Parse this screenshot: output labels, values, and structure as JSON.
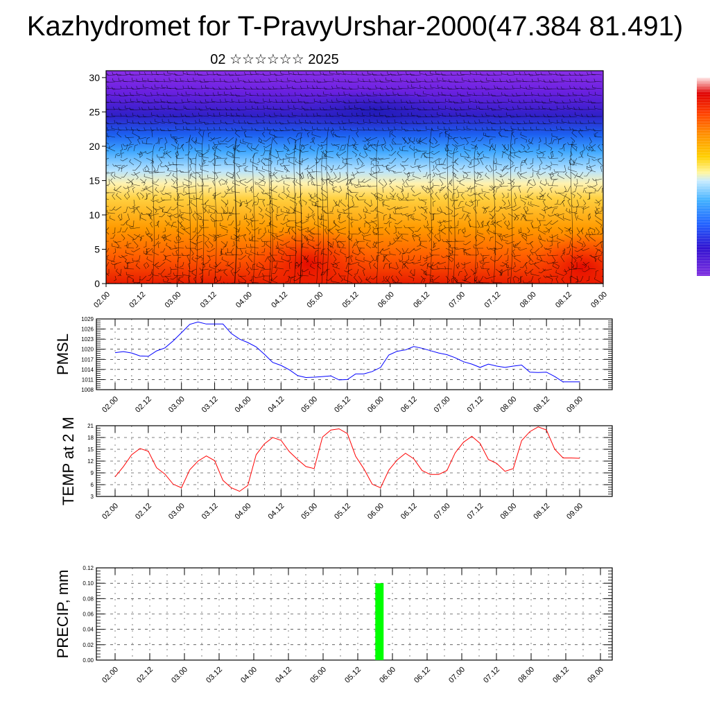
{
  "title": "Kazhydromet for T-PravyUrshar-2000(47.384 81.491)",
  "subtitle": "02 ☆☆☆☆☆☆ 2025",
  "chart_data": [
    {
      "type": "heatmap",
      "name": "cross-section",
      "x_ticks": [
        "02.00",
        "02.12",
        "03.00",
        "03.12",
        "04.00",
        "04.12",
        "05.00",
        "05.12",
        "06.00",
        "06.12",
        "07.00",
        "07.12",
        "08.00",
        "08.12",
        "09.00"
      ],
      "y_ticks": [
        0,
        5,
        10,
        15,
        20,
        25,
        30
      ],
      "ylim": [
        0,
        31
      ],
      "colorbar_colors": [
        "#e00000",
        "#ff3a00",
        "#ff8000",
        "#ffb800",
        "#fff2a0",
        "#b8e8ff",
        "#40b0ff",
        "#1060ff",
        "#4010d0",
        "#7020e0"
      ]
    },
    {
      "type": "line",
      "name": "pmsl",
      "ylabel": "PMSL",
      "color": "#0000ff",
      "x_ticks": [
        "02.00",
        "02.12",
        "03.00",
        "03.12",
        "04.00",
        "04.12",
        "05.00",
        "05.12",
        "06.00",
        "06.12",
        "07.00",
        "07.12",
        "08.00",
        "08.12",
        "09.00"
      ],
      "y_ticks": [
        1008,
        1011,
        1014,
        1017,
        1020,
        1023,
        1026,
        1029
      ],
      "ylim": [
        1008,
        1029
      ],
      "x": [
        0,
        1,
        2,
        3,
        4,
        5,
        6,
        7,
        8,
        9,
        10,
        11,
        12,
        13,
        14,
        15,
        16,
        17,
        18,
        19,
        20,
        21,
        22,
        23,
        24,
        25,
        26,
        27,
        28,
        29,
        30,
        31,
        32,
        33,
        34,
        35,
        36,
        37,
        38,
        39,
        40,
        41,
        42,
        43,
        44,
        45,
        46,
        47,
        48,
        49,
        50,
        51,
        52,
        53,
        54,
        55,
        56
      ],
      "values": [
        1019.0,
        1019.3,
        1018.9,
        1018.0,
        1017.9,
        1019.5,
        1020.4,
        1022.5,
        1024.9,
        1027.4,
        1028.1,
        1027.5,
        1027.5,
        1027.5,
        1024.7,
        1023.0,
        1022.0,
        1020.7,
        1018.5,
        1016.1,
        1015.2,
        1013.9,
        1012.2,
        1011.6,
        1011.7,
        1011.9,
        1012.1,
        1010.9,
        1011.0,
        1012.7,
        1012.7,
        1013.4,
        1014.6,
        1018.3,
        1019.4,
        1019.8,
        1020.8,
        1020.3,
        1019.6,
        1018.9,
        1018.4,
        1017.5,
        1016.3,
        1015.6,
        1014.6,
        1015.6,
        1015.0,
        1014.6,
        1015.0,
        1015.3,
        1013.2,
        1013.1,
        1013.2,
        1011.9,
        1010.3,
        1010.3,
        1010.3
      ]
    },
    {
      "type": "line",
      "name": "temp",
      "ylabel": "TEMP at 2 M",
      "color": "#ff0000",
      "x_ticks": [
        "02.00",
        "02.12",
        "03.00",
        "03.12",
        "04.00",
        "04.12",
        "05.00",
        "05.12",
        "06.00",
        "06.12",
        "07.00",
        "07.12",
        "08.00",
        "08.12",
        "09.00"
      ],
      "y_ticks": [
        3,
        6,
        9,
        12,
        15,
        18,
        21
      ],
      "ylim": [
        3,
        21
      ],
      "x": [
        0,
        1,
        2,
        3,
        4,
        5,
        6,
        7,
        8,
        9,
        10,
        11,
        12,
        13,
        14,
        15,
        16,
        17,
        18,
        19,
        20,
        21,
        22,
        23,
        24,
        25,
        26,
        27,
        28,
        29,
        30,
        31,
        32,
        33,
        34,
        35,
        36,
        37,
        38,
        39,
        40,
        41,
        42,
        43,
        44,
        45,
        46,
        47,
        48,
        49,
        50,
        51,
        52,
        53,
        54,
        55,
        56
      ],
      "values": [
        8.0,
        10.6,
        13.6,
        15.2,
        14.5,
        10.3,
        8.7,
        6.1,
        5.2,
        9.8,
        12.0,
        13.3,
        12.1,
        7.1,
        5.2,
        4.3,
        5.8,
        13.6,
        16.4,
        18.0,
        17.3,
        14.4,
        12.4,
        10.6,
        10.1,
        18.1,
        19.9,
        20.2,
        19.0,
        13.2,
        10.0,
        6.1,
        5.2,
        9.7,
        12.3,
        14.0,
        12.6,
        9.6,
        8.6,
        8.6,
        9.6,
        14.1,
        16.8,
        18.3,
        16.5,
        12.4,
        11.4,
        9.4,
        10.1,
        17.2,
        19.5,
        20.7,
        19.9,
        15.0,
        12.8,
        12.8,
        12.7
      ]
    },
    {
      "type": "bar",
      "name": "precip",
      "ylabel": "PRECIP, mm",
      "color": "#00ff00",
      "x_ticks": [
        "02.00",
        "02.12",
        "03.00",
        "03.12",
        "04.00",
        "04.12",
        "05.00",
        "05.12",
        "06.00",
        "06.12",
        "07.00",
        "07.12",
        "08.00",
        "08.12",
        "09.00"
      ],
      "y_ticks": [
        "0.00",
        "0.02",
        "0.04",
        "0.06",
        "0.08",
        "0.10",
        "0.12"
      ],
      "ylim": [
        0,
        0.12
      ],
      "bars": [
        {
          "x": 30.5,
          "value": 0.1
        }
      ]
    }
  ]
}
